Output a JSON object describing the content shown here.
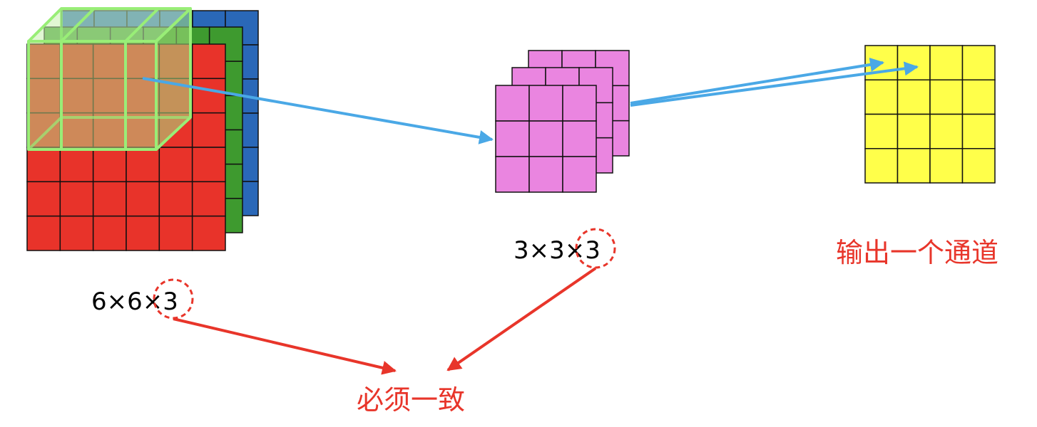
{
  "colors": {
    "input_red": "#e8332a",
    "input_green": "#3e9a2f",
    "input_blue": "#2a68b8",
    "filter_pink": "#ea85e0",
    "output_yellow": "#ffff4a",
    "window_green": "#99ee77",
    "arrow_blue": "#4aa8e6",
    "accent_red": "#e8352a"
  },
  "input": {
    "label": "6×6×3",
    "rows": 6,
    "cols": 6,
    "channels": 3
  },
  "filter": {
    "label": "3×3×3",
    "rows": 3,
    "cols": 3,
    "channels": 3
  },
  "output": {
    "label": "输出一个通道",
    "rows": 4,
    "cols": 4
  },
  "note": {
    "label": "必须一致"
  }
}
